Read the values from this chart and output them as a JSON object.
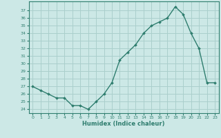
{
  "x": [
    0,
    1,
    2,
    3,
    4,
    5,
    6,
    7,
    8,
    9,
    10,
    11,
    12,
    13,
    14,
    15,
    16,
    17,
    18,
    19,
    20,
    21,
    22,
    23
  ],
  "y": [
    27,
    26.5,
    26,
    25.5,
    25.5,
    24.5,
    24.5,
    24,
    25,
    26,
    27.5,
    30.5,
    31.5,
    32.5,
    34,
    35,
    35.5,
    36,
    37.5,
    36.5,
    34,
    32,
    27.5,
    27.5
  ],
  "line_color": "#2e7d6e",
  "marker_color": "#2e7d6e",
  "bg_color": "#cce8e6",
  "grid_color": "#aacfcc",
  "xlabel": "Humidex (Indice chaleur)",
  "ylim": [
    23.5,
    38.2
  ],
  "xlim": [
    -0.5,
    23.5
  ],
  "yticks": [
    24,
    25,
    26,
    27,
    28,
    29,
    30,
    31,
    32,
    33,
    34,
    35,
    36,
    37
  ],
  "xticks": [
    0,
    1,
    2,
    3,
    4,
    5,
    6,
    7,
    8,
    9,
    10,
    11,
    12,
    13,
    14,
    15,
    16,
    17,
    18,
    19,
    20,
    21,
    22,
    23
  ]
}
